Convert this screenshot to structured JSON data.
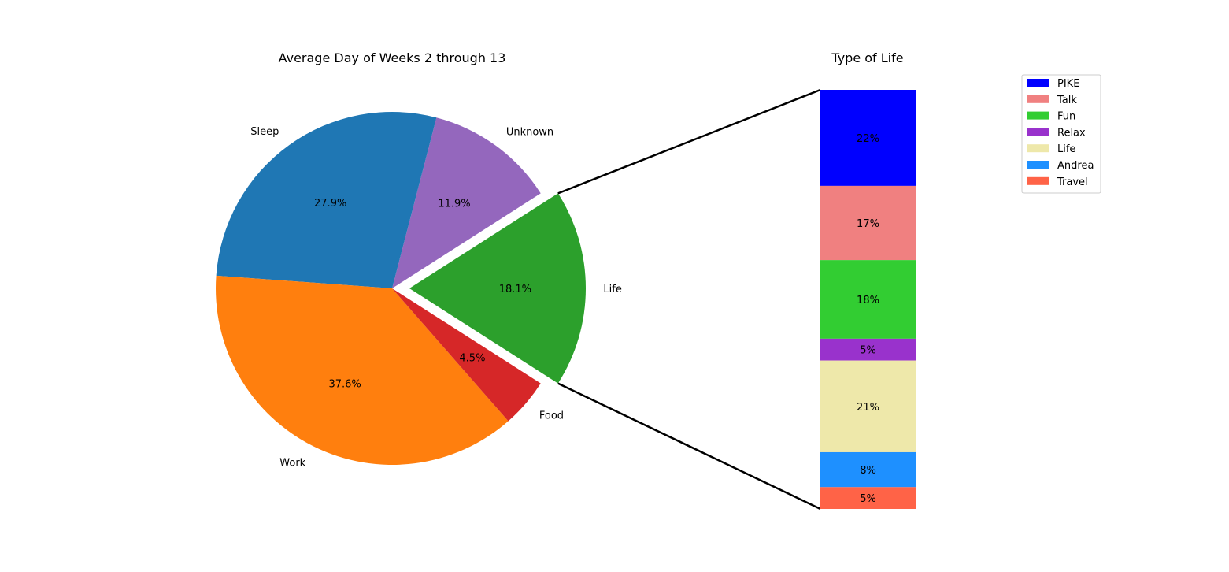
{
  "chart_data": [
    {
      "type": "pie",
      "title": "Average Day of Weeks 2 through 13",
      "slices": [
        {
          "label": "Life",
          "value": 18.1,
          "pct_label": "18.1%",
          "color": "#2ca02c",
          "explode": true
        },
        {
          "label": "Sleep",
          "value": 27.9,
          "pct_label": "27.9%",
          "color": "#1f77b4"
        },
        {
          "label": "Work",
          "value": 37.6,
          "pct_label": "37.6%",
          "color": "#ff7f0e"
        },
        {
          "label": "Food",
          "value": 4.5,
          "pct_label": "4.5%",
          "color": "#d62728"
        },
        {
          "label": "Unknown",
          "value": 11.9,
          "pct_label": "11.9%",
          "color": "#9467bd"
        }
      ],
      "slice_order_counterclockwise": [
        "Life",
        "Unknown",
        "Sleep",
        "Work",
        "Food"
      ]
    },
    {
      "type": "bar",
      "subtype": "stacked",
      "title": "Type of Life",
      "categories": [
        "PIKE",
        "Talk",
        "Fun",
        "Relax",
        "Life",
        "Andrea",
        "Travel"
      ],
      "values": [
        22,
        17,
        18,
        5,
        21,
        8,
        5
      ],
      "labels": [
        "22%",
        "17%",
        "18%",
        "5%",
        "21%",
        "8%",
        "5%"
      ],
      "colors": [
        "#0000ff",
        "#f08080",
        "#32cd32",
        "#9932cc",
        "#eee8aa",
        "#1e90ff",
        "#ff6347"
      ],
      "legend_placement": "upper-right"
    }
  ]
}
